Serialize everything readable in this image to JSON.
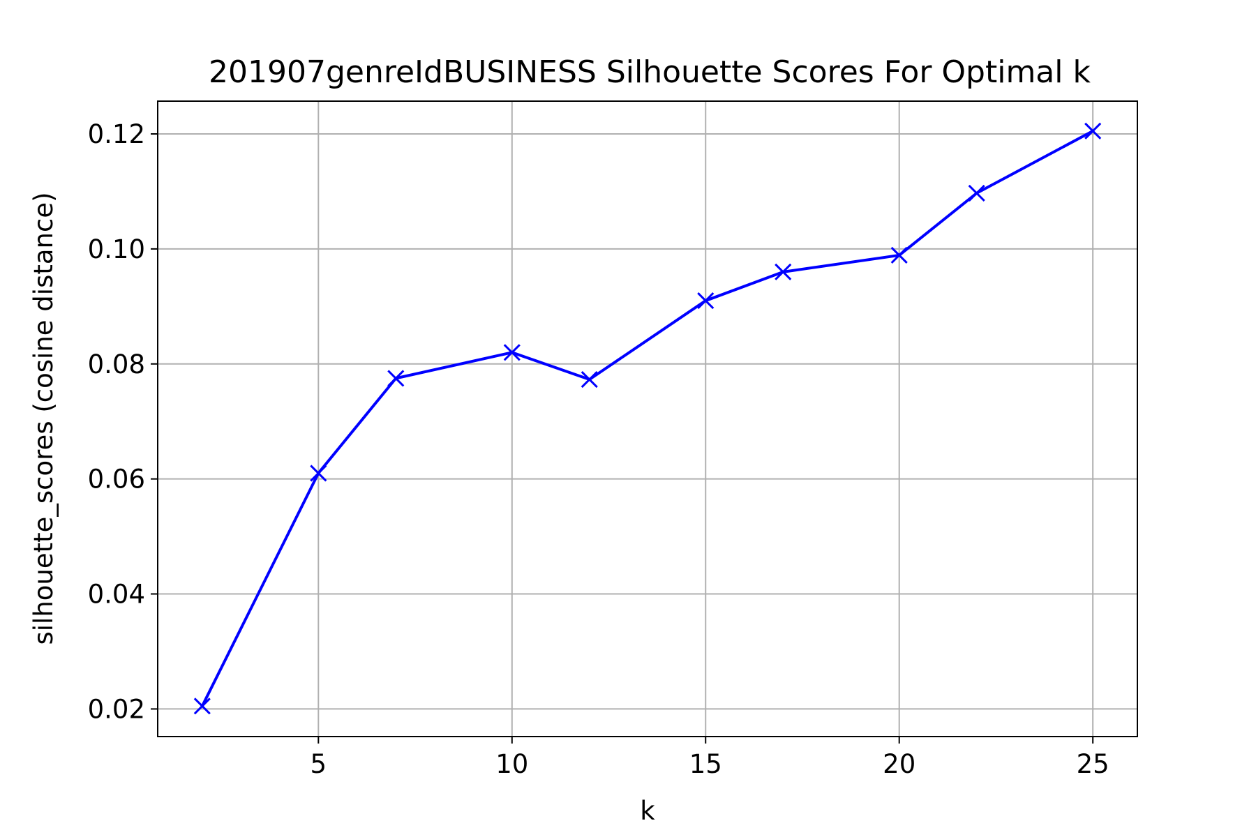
{
  "chart_data": {
    "type": "line",
    "title": "201907genreIdBUSINESS Silhouette Scores For Optimal k",
    "xlabel": "k",
    "ylabel": "silhouette_scores (cosine distance)",
    "xlim": [
      0.85,
      26.15
    ],
    "ylim": [
      0.0152,
      0.1257
    ],
    "xticks": [
      5,
      10,
      15,
      20,
      25
    ],
    "yticks": [
      0.02,
      0.04,
      0.06,
      0.08,
      0.1,
      0.12
    ],
    "ytick_labels": [
      "0.02",
      "0.04",
      "0.06",
      "0.08",
      "0.10",
      "0.12"
    ],
    "grid": true,
    "marker": "x",
    "series": [
      {
        "color": "#0000ff",
        "x": [
          2,
          5,
          7,
          10,
          12,
          15,
          17,
          20,
          22,
          25
        ],
        "y": [
          0.0205,
          0.061,
          0.0775,
          0.082,
          0.0773,
          0.091,
          0.096,
          0.0989,
          0.1097,
          0.1205
        ]
      }
    ]
  }
}
